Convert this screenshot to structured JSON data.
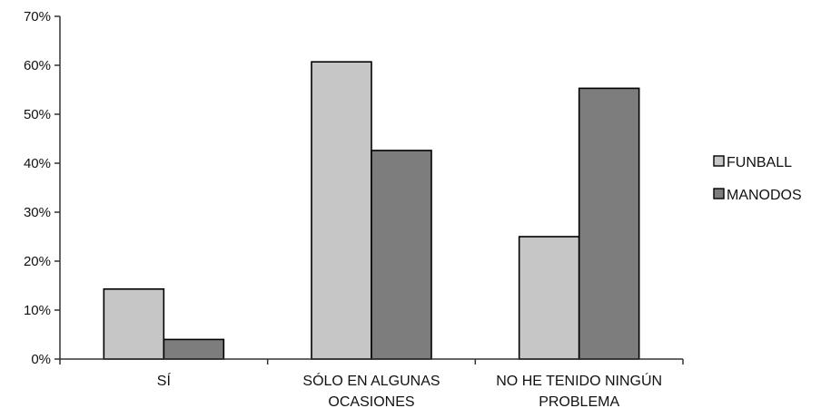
{
  "chart_data": {
    "type": "bar",
    "categories": [
      [
        "SÍ"
      ],
      [
        "SÓLO EN ALGUNAS",
        "OCASIONES"
      ],
      [
        "NO HE TENIDO NINGÚN",
        "PROBLEMA"
      ]
    ],
    "series": [
      {
        "name": "FUNBALL",
        "values": [
          14.3,
          60.7,
          25
        ],
        "color": "#c6c6c6"
      },
      {
        "name": "MANODOS",
        "values": [
          4,
          42.6,
          55.3
        ],
        "color": "#7d7d7d"
      }
    ],
    "ylim": [
      0,
      70
    ],
    "yticks": [
      "0%",
      "10%",
      "20%",
      "30%",
      "40%",
      "50%",
      "60%",
      "70%"
    ],
    "grid": false,
    "legend": "right"
  }
}
